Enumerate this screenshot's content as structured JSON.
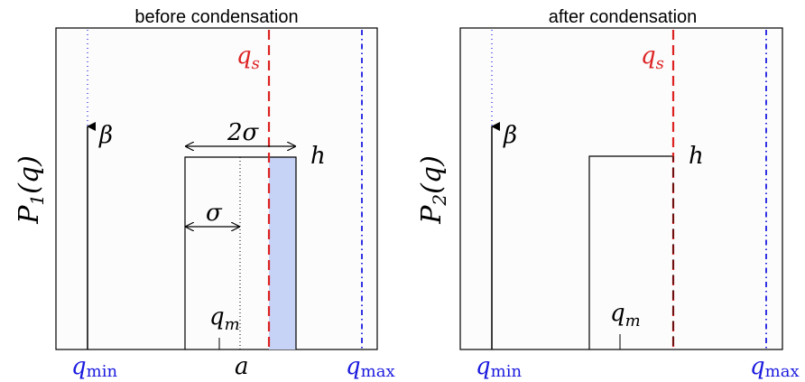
{
  "colors": {
    "red": "#dd2222",
    "blue": "#1a1adf",
    "shade": "#c7d3f6",
    "frame_bg": "#fcfcfc"
  },
  "panels": [
    {
      "title": "before condensation",
      "ylabel_main": "P",
      "ylabel_sub": "1",
      "ylabel_tail": "(q)",
      "beta_label": "β",
      "h_label": "h",
      "qs_main": "q",
      "qs_sub": "s",
      "qm_main": "q",
      "qm_sub": "m",
      "qmin_main": "q",
      "qmin_sub": "min",
      "qmax_main": "q",
      "qmax_sub": "max",
      "two_sigma_label": "2σ",
      "sigma_label": "σ",
      "a_label": "a"
    },
    {
      "title": "after condensation",
      "ylabel_main": "P",
      "ylabel_sub": "2",
      "ylabel_tail": "(q)",
      "beta_label": "β",
      "h_label": "h",
      "qs_main": "q",
      "qs_sub": "s",
      "qm_main": "q",
      "qm_sub": "m",
      "qmin_main": "q",
      "qmin_sub": "min",
      "qmax_main": "q",
      "qmax_sub": "max"
    }
  ]
}
